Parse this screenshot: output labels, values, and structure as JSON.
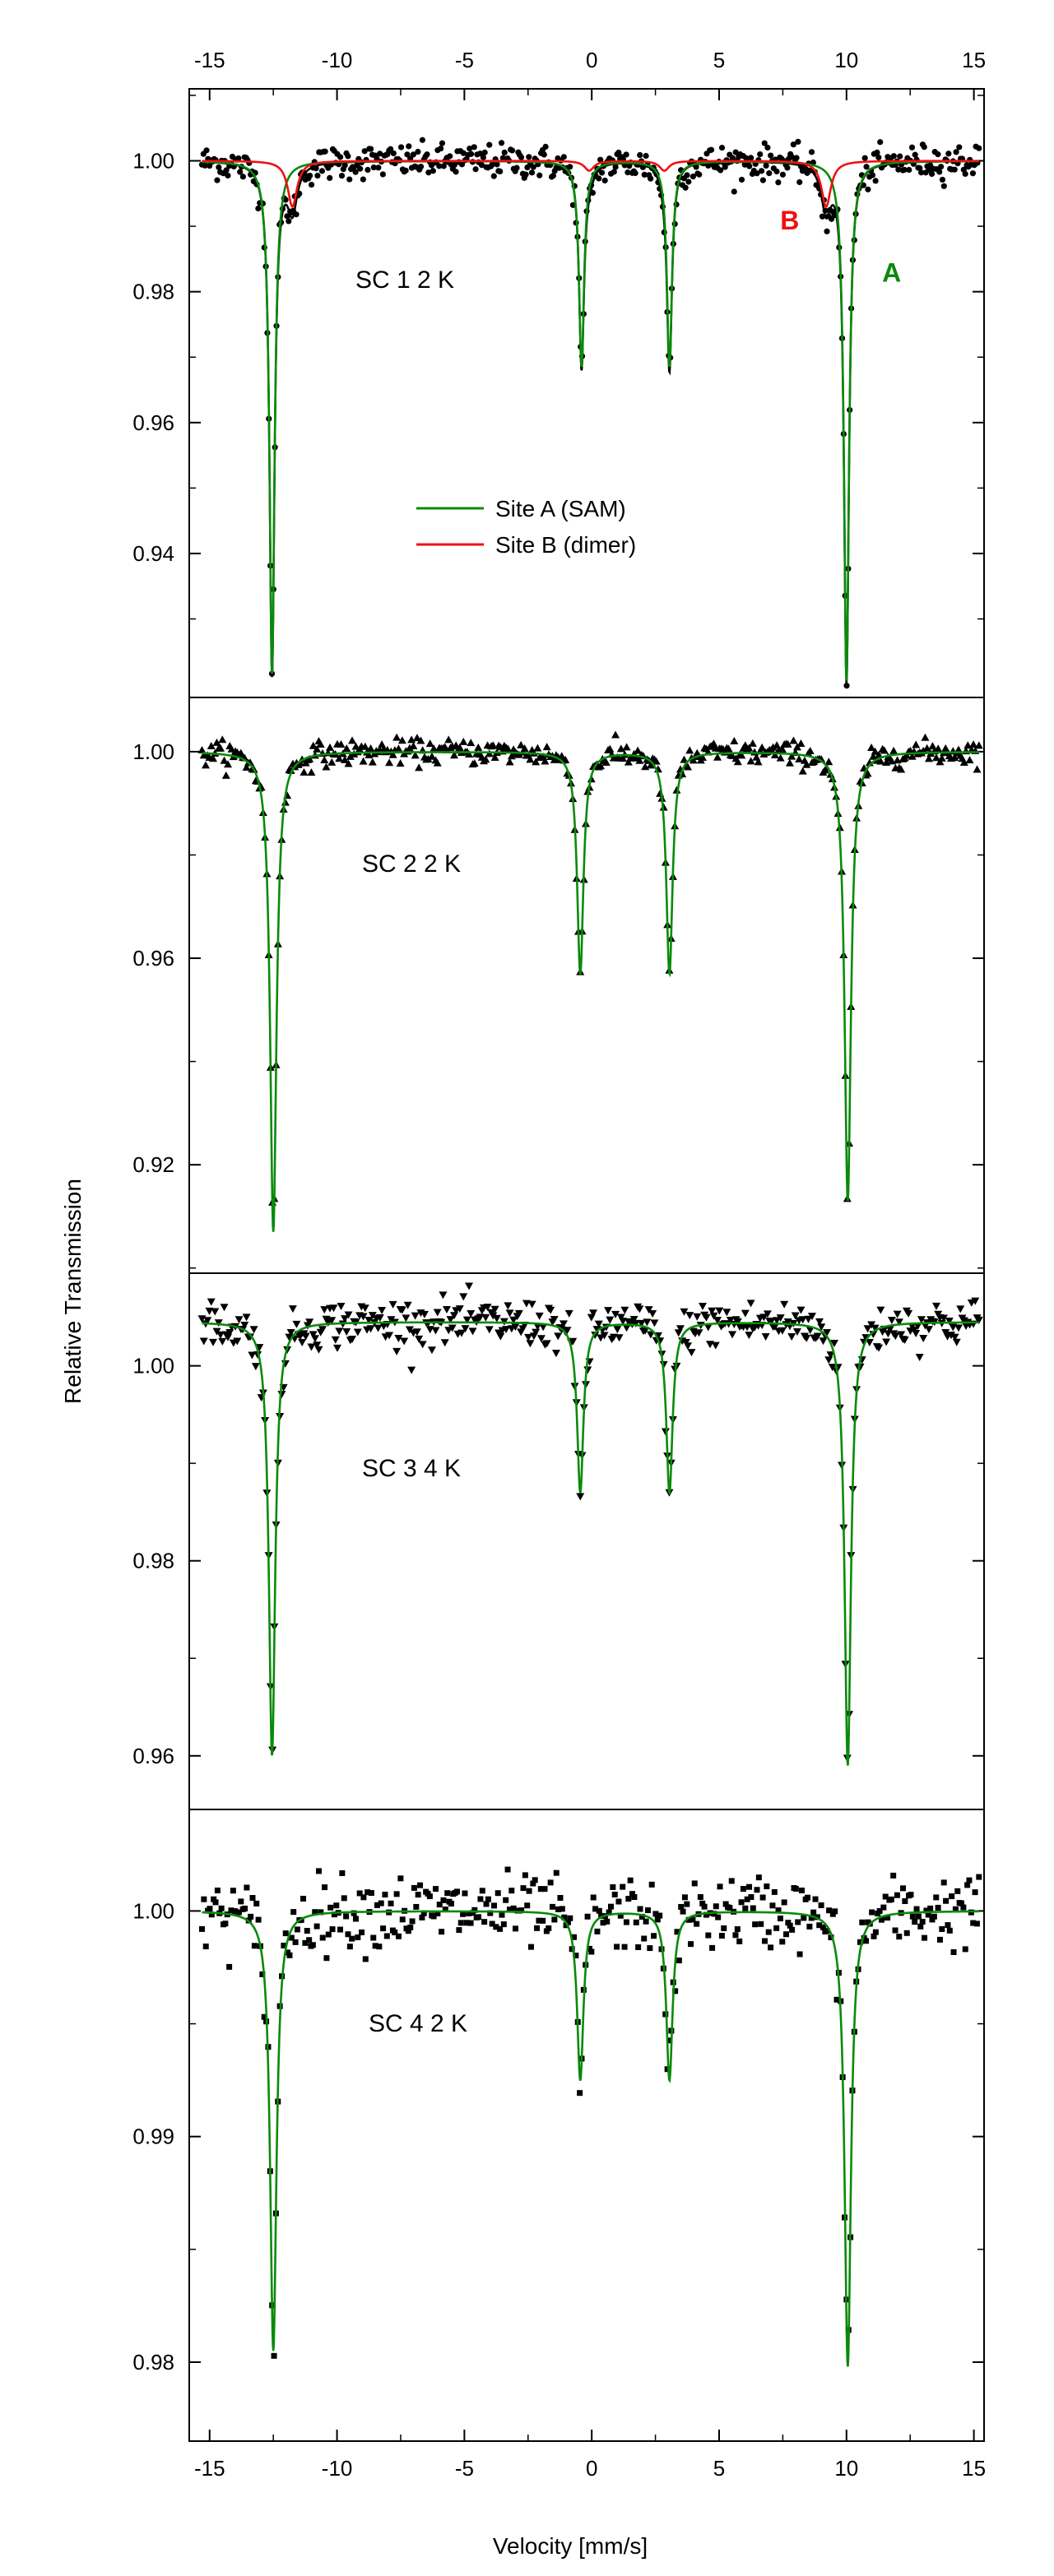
{
  "colors": {
    "site_a": "#0a8a0a",
    "site_b": "#ee1111",
    "data_points": "#000000",
    "fit_total": "#000000"
  },
  "chart_data": {
    "type": "scatter",
    "title": "",
    "xlabel": "Velocity [mm/s]",
    "ylabel": "Relative Transmission",
    "xlim": [
      -15.8,
      15.4
    ],
    "x_ticks": [
      -15,
      -10,
      -5,
      0,
      5,
      10,
      15
    ],
    "x_tick_labels": [
      "-15",
      "-10",
      "-5",
      "0",
      "5",
      "10",
      "15"
    ],
    "top_x_tick_labels": [
      "-15",
      "-10",
      "-5",
      "0",
      "5",
      "10",
      "15"
    ],
    "grid": false,
    "legend": {
      "placement": "inside-top-center of first panel",
      "entries": [
        {
          "label": "Site A (SAM)",
          "color": "#0a8a0a"
        },
        {
          "label": "Site B (dimer)",
          "color": "#ee1111"
        }
      ]
    },
    "panels": [
      {
        "id": "sc1",
        "label": "SC 1   2 K",
        "marker": "circle",
        "ylim": [
          0.918,
          1.011
        ],
        "y_ticks": [
          0.94,
          0.96,
          0.98,
          1.0
        ],
        "y_tick_labels": [
          "0.94",
          "0.96",
          "0.98",
          "1.00"
        ],
        "annotations": [
          {
            "text": "A",
            "x": 11.4,
            "y": 0.9815,
            "color": "#0a8a0a"
          },
          {
            "text": "B",
            "x": 7.4,
            "y": 0.9895,
            "color": "#ee1111"
          }
        ],
        "series": [
          {
            "name": "Site A (SAM)",
            "color": "#0a8a0a",
            "lines": [
              [
                -12.55,
                0.0785
              ],
              [
                -0.4,
                0.0315
              ],
              [
                3.05,
                0.0315
              ],
              [
                10.0,
                0.0795
              ]
            ],
            "width": 0.24
          },
          {
            "name": "Site B (dimer)",
            "color": "#ee1111",
            "lines": [
              [
                -11.75,
                0.007
              ],
              [
                -0.1,
                0.0015
              ],
              [
                2.85,
                0.0015
              ],
              [
                9.2,
                0.007
              ]
            ],
            "width": 0.45
          }
        ],
        "noise": 0.0013,
        "n_points": 512
      },
      {
        "id": "sc2",
        "label": "SC 2   2 K",
        "marker": "triangle-up",
        "ylim": [
          0.899,
          1.0105
        ],
        "y_ticks": [
          0.92,
          0.96,
          1.0
        ],
        "y_tick_labels": [
          "0.92",
          "0.96",
          "1.00"
        ],
        "annotations": [],
        "series": [
          {
            "name": "Site A (SAM)",
            "color": "#0a8a0a",
            "lines": [
              [
                -12.5,
                0.093
              ],
              [
                -0.45,
                0.043
              ],
              [
                3.05,
                0.043
              ],
              [
                10.05,
                0.087
              ]
            ],
            "width": 0.3
          }
        ],
        "noise": 0.0012,
        "n_points": 420
      },
      {
        "id": "sc3",
        "label": "SC 3   4 K",
        "marker": "triangle-down",
        "ylim": [
          0.9545,
          1.0095
        ],
        "y_ticks": [
          0.96,
          0.98,
          1.0
        ],
        "y_tick_labels": [
          "0.96",
          "0.98",
          "1.00"
        ],
        "annotations": [],
        "series": [
          {
            "name": "Site A (SAM)",
            "color": "#0a8a0a",
            "lines": [
              [
                -12.55,
                0.0445
              ],
              [
                -0.45,
                0.0175
              ],
              [
                3.05,
                0.0175
              ],
              [
                10.05,
                0.0455
              ]
            ],
            "width": 0.3
          }
        ],
        "baseline": 1.0045,
        "noise": 0.0012,
        "n_points": 420
      },
      {
        "id": "sc4",
        "label": "SC 4   2 K",
        "marker": "square",
        "ylim": [
          0.9765,
          1.0045
        ],
        "y_ticks": [
          0.98,
          0.99,
          1.0
        ],
        "y_tick_labels": [
          "0.98",
          "0.99",
          "1.00"
        ],
        "annotations": [],
        "series": [
          {
            "name": "Site A (SAM)",
            "color": "#0a8a0a",
            "lines": [
              [
                -12.5,
                0.0195
              ],
              [
                -0.45,
                0.0075
              ],
              [
                3.05,
                0.0075
              ],
              [
                10.05,
                0.0202
              ]
            ],
            "width": 0.3
          }
        ],
        "noise": 0.0008,
        "n_points": 400
      }
    ]
  }
}
